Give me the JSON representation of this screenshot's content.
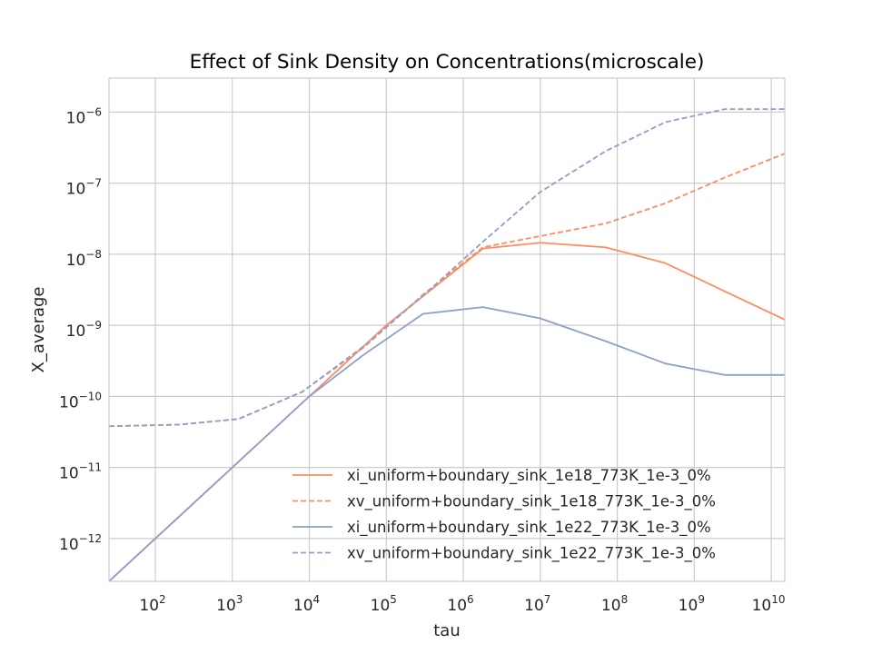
{
  "chart_data": {
    "type": "line",
    "title": "Effect of Sink Density on Concentrations(microscale)",
    "xlabel": "tau",
    "ylabel": "X_average",
    "xscale": "log",
    "yscale": "log",
    "xlim": [
      25,
      15000000000.0
    ],
    "ylim": [
      2.5e-13,
      3e-06
    ],
    "grid": true,
    "legend_position": "lower-right",
    "xtick_labels": [
      {
        "base": "10",
        "exp": "2",
        "value": 100
      },
      {
        "base": "10",
        "exp": "3",
        "value": 1000
      },
      {
        "base": "10",
        "exp": "4",
        "value": 10000
      },
      {
        "base": "10",
        "exp": "5",
        "value": 100000
      },
      {
        "base": "10",
        "exp": "6",
        "value": 1000000
      },
      {
        "base": "10",
        "exp": "7",
        "value": 10000000
      },
      {
        "base": "10",
        "exp": "8",
        "value": 100000000
      },
      {
        "base": "10",
        "exp": "9",
        "value": 1000000000
      },
      {
        "base": "10",
        "exp": "10",
        "value": 10000000000
      }
    ],
    "ytick_labels": [
      {
        "base": "10",
        "exp": "−12",
        "value": 1e-12
      },
      {
        "base": "10",
        "exp": "−11",
        "value": 1e-11
      },
      {
        "base": "10",
        "exp": "−10",
        "value": 1e-10
      },
      {
        "base": "10",
        "exp": "−9",
        "value": 1e-09
      },
      {
        "base": "10",
        "exp": "−8",
        "value": 1e-08
      },
      {
        "base": "10",
        "exp": "−7",
        "value": 1e-07
      },
      {
        "base": "10",
        "exp": "−6",
        "value": 1e-06
      }
    ],
    "series": [
      {
        "name": "xi_uniform+boundary_sink_1e18_773K_1e-3_0%",
        "color": "#fc8d62",
        "dash": "solid",
        "x": [
          25,
          1000,
          10000,
          100000,
          1800000,
          10000000,
          70000000,
          420000000,
          2500000000,
          15000000000
        ],
        "y": [
          2.5e-13,
          1e-11,
          1e-10,
          1e-09,
          1.2e-08,
          1.45e-08,
          1.25e-08,
          7.5e-09,
          3e-09,
          1.2e-09
        ]
      },
      {
        "name": "xv_uniform+boundary_sink_1e18_773K_1e-3_0%",
        "color": "#fc8d62",
        "dash": "dashed",
        "x": [
          25,
          200,
          1200,
          8000,
          50000,
          300000,
          1800000,
          10000000,
          70000000,
          420000000,
          2500000000,
          15000000000
        ],
        "y": [
          3.8e-11,
          4e-11,
          4.8e-11,
          1.15e-10,
          4.8e-10,
          2.7e-09,
          1.25e-08,
          1.8e-08,
          2.7e-08,
          5.2e-08,
          1.2e-07,
          2.6e-07
        ]
      },
      {
        "name": "xi_uniform+boundary_sink_1e22_773K_1e-3_0%",
        "color": "#8da0cb",
        "dash": "solid",
        "x": [
          25,
          1000,
          10000,
          50000,
          300000,
          1800000,
          10000000,
          70000000,
          420000000,
          2500000000,
          15000000000
        ],
        "y": [
          2.5e-13,
          1e-11,
          1e-10,
          3.8e-10,
          1.45e-09,
          1.8e-09,
          1.25e-09,
          6e-10,
          2.9e-10,
          2e-10,
          2e-10
        ]
      },
      {
        "name": "xv_uniform+boundary_sink_1e22_773K_1e-3_0%",
        "color": "#8da0cb",
        "dash": "dashed",
        "x": [
          25,
          200,
          1200,
          8000,
          50000,
          300000,
          1800000,
          10000000,
          70000000,
          420000000,
          2500000000,
          15000000000
        ],
        "y": [
          3.8e-11,
          4e-11,
          4.8e-11,
          1.15e-10,
          5e-10,
          2.6e-09,
          1.5e-08,
          7.5e-08,
          2.8e-07,
          7.2e-07,
          1.1e-06,
          1.1e-06
        ]
      }
    ]
  }
}
